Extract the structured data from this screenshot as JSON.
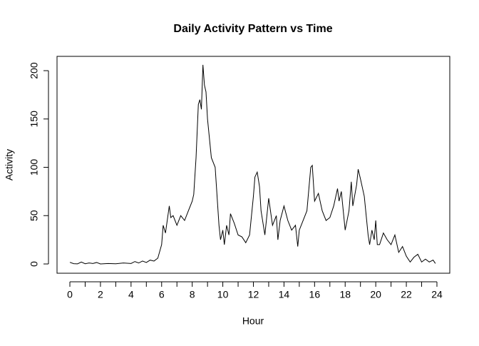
{
  "chart_data": {
    "type": "line",
    "title": "Daily Activity Pattern vs Time",
    "xlabel": "Hour",
    "ylabel": "Activity",
    "color": "#000000",
    "x": [
      0,
      0.25,
      0.5,
      0.75,
      1,
      1.25,
      1.5,
      1.75,
      2,
      2.5,
      3,
      3.5,
      4,
      4.25,
      4.5,
      4.75,
      5,
      5.25,
      5.5,
      5.75,
      6,
      6.1,
      6.25,
      6.5,
      6.6,
      6.75,
      7,
      7.25,
      7.5,
      7.75,
      8,
      8.1,
      8.25,
      8.4,
      8.5,
      8.6,
      8.7,
      8.8,
      8.9,
      9,
      9.25,
      9.5,
      9.75,
      9.85,
      10,
      10.1,
      10.25,
      10.4,
      10.5,
      10.75,
      11,
      11.25,
      11.5,
      11.75,
      12,
      12.1,
      12.25,
      12.4,
      12.5,
      12.75,
      13,
      13.25,
      13.5,
      13.6,
      13.75,
      14,
      14.25,
      14.5,
      14.75,
      14.9,
      15,
      15.25,
      15.5,
      15.75,
      15.85,
      16,
      16.25,
      16.5,
      16.75,
      17,
      17.25,
      17.5,
      17.6,
      17.75,
      18,
      18.25,
      18.4,
      18.5,
      18.75,
      18.85,
      19,
      19.25,
      19.5,
      19.6,
      19.75,
      19.9,
      20,
      20.1,
      20.25,
      20.5,
      20.75,
      21,
      21.25,
      21.5,
      21.75,
      22,
      22.25,
      22.5,
      22.75,
      23,
      23.25,
      23.5,
      23.75,
      23.9
    ],
    "values": [
      1.7,
      0.3,
      0.1,
      2,
      0.2,
      1,
      0.5,
      1.5,
      0,
      0.5,
      0.2,
      1,
      0.5,
      2.5,
      1,
      3,
      1.5,
      4,
      3,
      6,
      20,
      40,
      32,
      60,
      48,
      50,
      40,
      50,
      45,
      55,
      65,
      72,
      110,
      165,
      170,
      160,
      206,
      185,
      178,
      150,
      110,
      100,
      40,
      25,
      35,
      20,
      40,
      30,
      52,
      42,
      30,
      28,
      22,
      30,
      70,
      90,
      95,
      80,
      55,
      30,
      68,
      40,
      50,
      25,
      45,
      60,
      45,
      35,
      40,
      18,
      35,
      45,
      55,
      100,
      102,
      65,
      73,
      55,
      45,
      48,
      60,
      78,
      65,
      75,
      35,
      55,
      85,
      60,
      82,
      98,
      88,
      70,
      30,
      20,
      35,
      25,
      45,
      20,
      20,
      32,
      25,
      20,
      30,
      12,
      18,
      8,
      2,
      7,
      10,
      2,
      5,
      2,
      4,
      0.5
    ],
    "xlim": [
      -0.84,
      24.84
    ],
    "ylim": [
      -9.6,
      214.8
    ],
    "xticks": [
      0,
      2,
      4,
      6,
      8,
      10,
      12,
      14,
      16,
      18,
      20,
      22,
      24
    ],
    "xminorticks": [
      1,
      3,
      5,
      7,
      9,
      11,
      13,
      15,
      17,
      19,
      21,
      23
    ],
    "yticks": [
      0,
      50,
      100,
      150,
      200
    ]
  }
}
